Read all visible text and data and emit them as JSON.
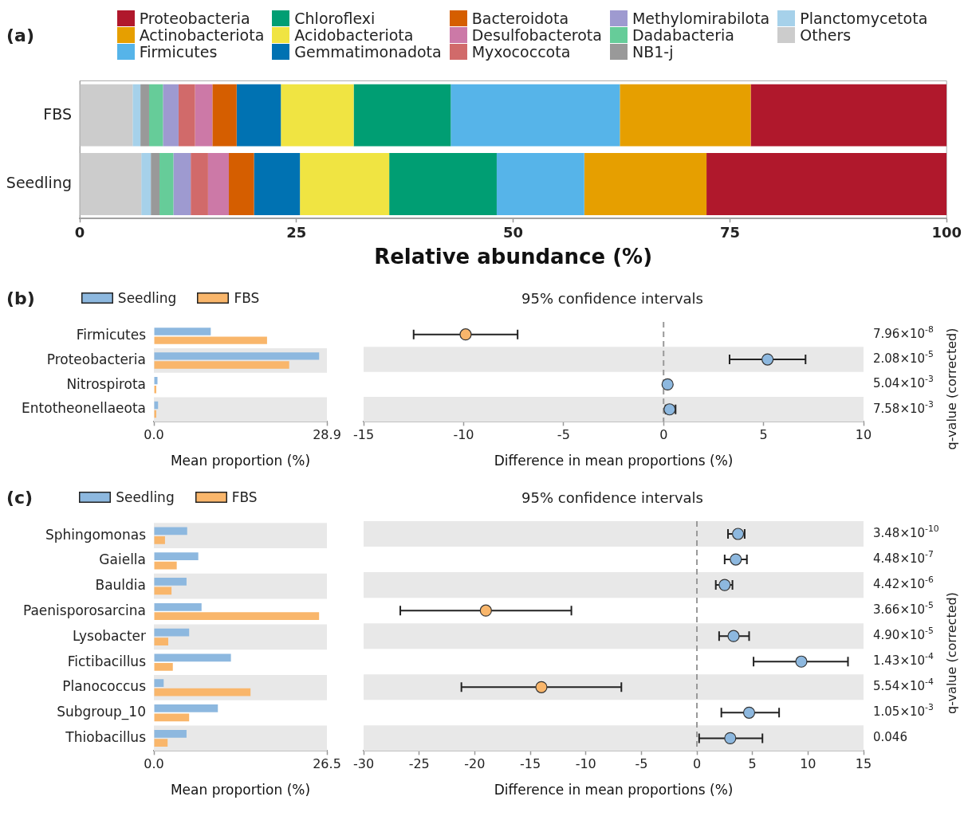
{
  "chart_data": [
    {
      "type": "bar",
      "orientation": "horizontal",
      "stacked": true,
      "annotations": [
        "(a)"
      ],
      "categories": [
        "FBS",
        "Seedling"
      ],
      "xlabel": "Relative abundance (%)",
      "xlim": [
        0,
        100
      ],
      "xticks": [
        0,
        25,
        50,
        75,
        100
      ],
      "grid": false,
      "legend": "top",
      "series": [
        {
          "name": "Others",
          "color": "#cccccc",
          "values": [
            6.1,
            7.1
          ]
        },
        {
          "name": "Planctomycetota",
          "color": "#a6d1ea",
          "values": [
            0.9,
            1.1
          ]
        },
        {
          "name": "NB1-j",
          "color": "#999999",
          "values": [
            1.0,
            1.0
          ]
        },
        {
          "name": "Dadabacteria",
          "color": "#66cc99",
          "values": [
            1.6,
            1.6
          ]
        },
        {
          "name": "Methylomirabilota",
          "color": "#9e9ad0",
          "values": [
            1.8,
            2.0
          ]
        },
        {
          "name": "Myxococcota",
          "color": "#d16a6a",
          "values": [
            1.9,
            2.0
          ]
        },
        {
          "name": "Desulfobacterota",
          "color": "#cc79a7",
          "values": [
            2.0,
            2.4
          ]
        },
        {
          "name": "Bacteroidota",
          "color": "#d55e00",
          "values": [
            2.8,
            2.9
          ]
        },
        {
          "name": "Gemmatimonadota",
          "color": "#0072b2",
          "values": [
            5.1,
            5.3
          ]
        },
        {
          "name": "Acidobacteriota",
          "color": "#f0e442",
          "values": [
            8.4,
            10.3
          ]
        },
        {
          "name": "Chloroflexi",
          "color": "#009e73",
          "values": [
            11.2,
            12.4
          ]
        },
        {
          "name": "Firmicutes",
          "color": "#56b4e9",
          "values": [
            19.5,
            10.1
          ]
        },
        {
          "name": "Actinobacteriota",
          "color": "#e69f00",
          "values": [
            15.1,
            14.1
          ]
        },
        {
          "name": "Proteobacteria",
          "color": "#b0182c",
          "values": [
            22.6,
            27.7
          ]
        }
      ]
    },
    {
      "type": "bar",
      "orientation": "horizontal",
      "annotations": [
        "(b)"
      ],
      "categories": [
        "Firmicutes",
        "Proteobacteria",
        "Nitrospirota",
        "Entotheonellaeota"
      ],
      "xlabel": "Mean proportion (%)",
      "xlim": [
        0,
        28.9
      ],
      "xticks": [
        {
          "value": 0,
          "label": "0.0"
        },
        28.9
      ],
      "grid": false,
      "legend": "top left",
      "series": [
        {
          "name": "Seedling",
          "color": "#8db8df",
          "values": [
            9.5,
            27.6,
            0.6,
            0.7
          ]
        },
        {
          "name": "FBS",
          "color": "#f9b66b",
          "values": [
            18.9,
            22.6,
            0.4,
            0.4
          ]
        }
      ]
    },
    {
      "type": "scatter",
      "orientation": "horizontal",
      "title": "95% confidence intervals",
      "tick_labels": "x",
      "xlabel": "Difference in mean proportions (%)",
      "y2label": "q-value (corrected)",
      "xlim": [
        -15,
        10
      ],
      "xticks": [
        -15,
        -10,
        -5,
        0,
        5,
        10
      ],
      "grid": false,
      "marker": "circle",
      "ref_lines": [
        {
          "axis": "x",
          "value": 0,
          "color": "#999999",
          "line_style": "dashed"
        }
      ],
      "series": [
        {
          "colors": [
            "#f9b66b",
            "#8db8df",
            "#8db8df",
            "#8db8df"
          ],
          "values": [
            -9.9,
            5.2,
            0.2,
            0.3
          ],
          "errors": [
            [
              -12.5,
              -7.3
            ],
            [
              3.3,
              7.1
            ],
            null,
            [
              0.1,
              0.6
            ]
          ]
        }
      ],
      "annotations": [
        "7.96×10$^{-8}$",
        "2.08×10$^{-5}$",
        "5.04×10$^{-3}$",
        "7.58×10$^{-3}$"
      ]
    },
    {
      "type": "bar",
      "orientation": "horizontal",
      "annotations": [
        "(c)"
      ],
      "categories": [
        "Sphingomonas",
        "Gaiella",
        "Bauldia",
        "Paenisporosarcina",
        "Lysobacter",
        "Fictibacillus",
        "Planococcus",
        "Subgroup_10",
        "Thiobacillus"
      ],
      "xlabel": "Mean proportion (%)",
      "xlim": [
        0,
        26.5
      ],
      "xticks": [
        {
          "value": 0,
          "label": "0.0"
        },
        26.5
      ],
      "grid": false,
      "legend": "top left",
      "series": [
        {
          "name": "Seedling",
          "color": "#8db8df",
          "values": [
            5.1,
            6.8,
            5.0,
            7.3,
            5.4,
            11.8,
            1.5,
            9.8,
            5.0
          ]
        },
        {
          "name": "FBS",
          "color": "#f9b66b",
          "values": [
            1.7,
            3.5,
            2.7,
            25.3,
            2.2,
            2.9,
            14.8,
            5.4,
            2.1
          ]
        }
      ]
    },
    {
      "type": "scatter",
      "orientation": "horizontal",
      "title": "95% confidence intervals",
      "tick_labels": "x",
      "xlabel": "Difference in mean proportions (%)",
      "y2label": "q-value (corrected)",
      "xlim": [
        -30,
        15
      ],
      "xticks": [
        -30,
        -25,
        -20,
        -15,
        -10,
        -5,
        0,
        5,
        10,
        15
      ],
      "grid": false,
      "marker": "circle",
      "ref_lines": [
        {
          "axis": "x",
          "value": 0,
          "color": "#999999",
          "line_style": "dashed"
        }
      ],
      "series": [
        {
          "colors": [
            "#8db8df",
            "#8db8df",
            "#8db8df",
            "#f9b66b",
            "#8db8df",
            "#8db8df",
            "#f9b66b",
            "#8db8df",
            "#8db8df"
          ],
          "values": [
            3.7,
            3.5,
            2.5,
            -19.0,
            3.3,
            9.4,
            -14.0,
            4.7,
            3.0
          ],
          "errors": [
            [
              2.8,
              4.3
            ],
            [
              2.5,
              4.5
            ],
            [
              1.7,
              3.2
            ],
            [
              -26.7,
              -11.3
            ],
            [
              2.0,
              4.7
            ],
            [
              5.1,
              13.6
            ],
            [
              -21.2,
              -6.8
            ],
            [
              2.2,
              7.4
            ],
            [
              0.2,
              5.9
            ]
          ]
        }
      ],
      "annotations": [
        "3.48×10$^{-10}$",
        "4.48×10$^{-7}$",
        "4.42×10$^{-6}$",
        "3.66×10$^{-5}$",
        "4.90×10$^{-5}$",
        "1.43×10$^{-4}$",
        "5.54×10$^{-4}$",
        "1.05×10$^{-3}$",
        "0.046"
      ]
    }
  ]
}
